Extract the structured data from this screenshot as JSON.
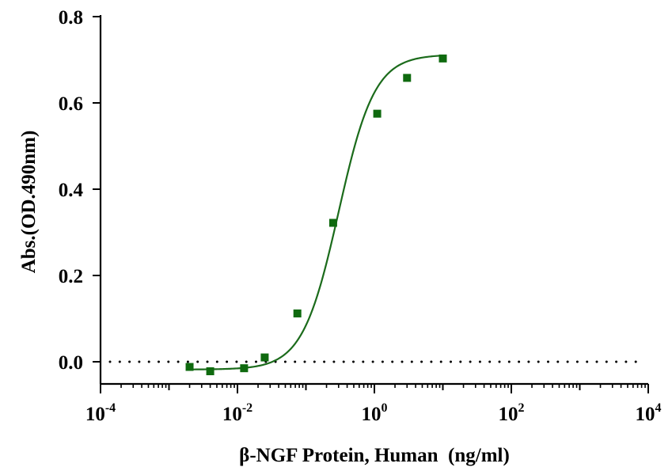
{
  "chart_data": {
    "type": "scatter",
    "title": "",
    "xlabel": "β-NGF Protein, Human  (ng/ml)",
    "ylabel": "Abs.(OD.490nm)",
    "x_scale": "log10",
    "xlim": [
      0.0001,
      10000
    ],
    "ylim": [
      -0.05,
      0.8
    ],
    "x_ticks": [
      {
        "base": "10",
        "exp": "-4"
      },
      {
        "base": "10",
        "exp": "-2"
      },
      {
        "base": "10",
        "exp": "0"
      },
      {
        "base": "10",
        "exp": "2"
      },
      {
        "base": "10",
        "exp": "4"
      }
    ],
    "y_ticks": [
      "0.0",
      "0.2",
      "0.4",
      "0.6",
      "0.8"
    ],
    "reference_line": {
      "y": 0,
      "style": "dotted"
    },
    "series": [
      {
        "color": "#0f6a0f",
        "marker": "square",
        "fit": "4PL",
        "x": [
          0.002,
          0.004,
          0.0125,
          0.025,
          0.075,
          0.25,
          1.1,
          3.0,
          10.0
        ],
        "y": [
          -0.012,
          -0.022,
          -0.015,
          0.01,
          0.112,
          0.322,
          0.575,
          0.658,
          0.703
        ]
      }
    ]
  }
}
